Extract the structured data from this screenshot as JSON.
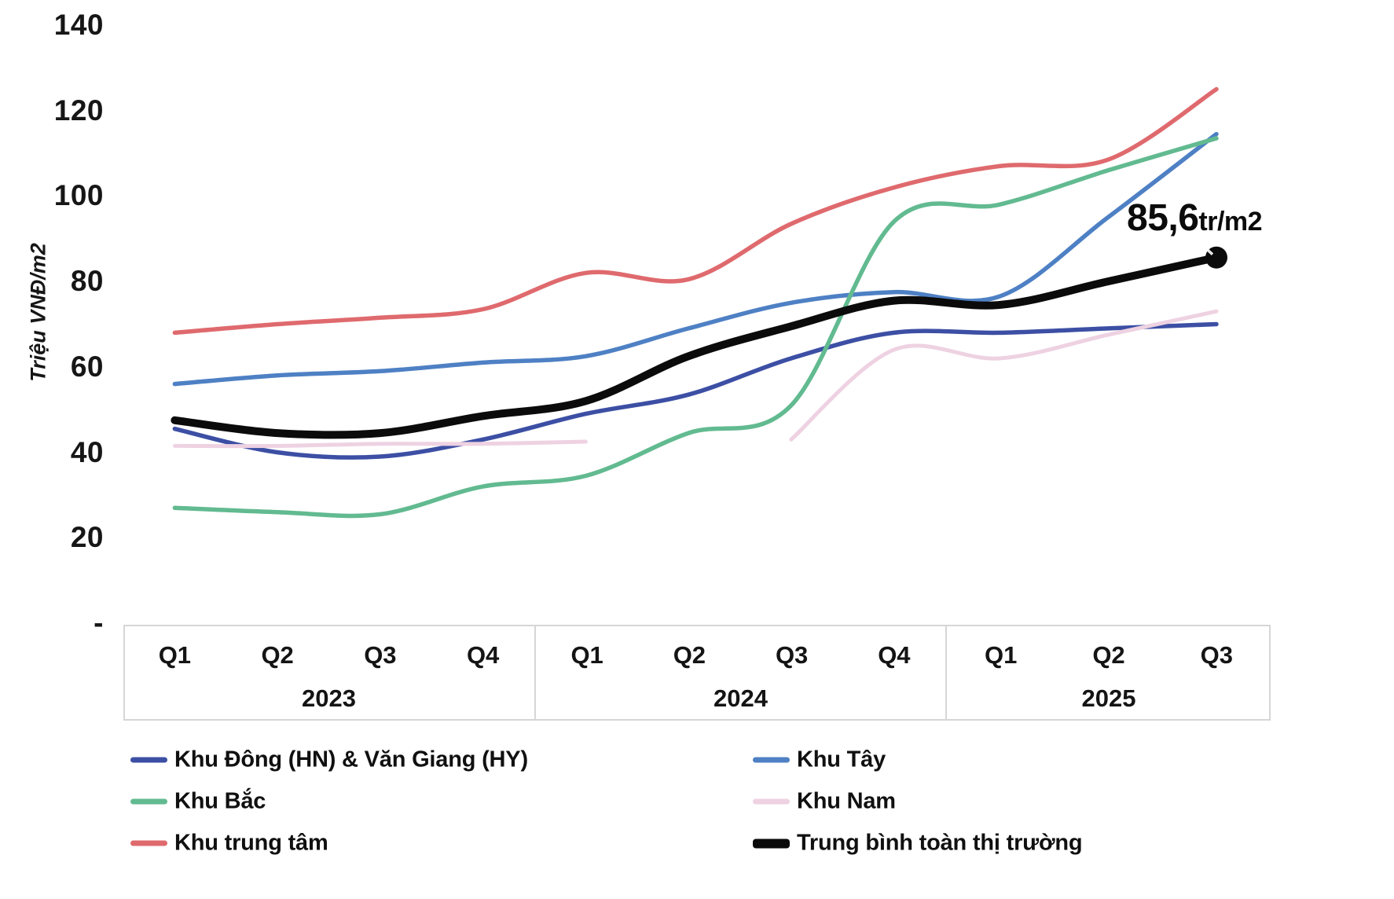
{
  "chart_data": {
    "type": "line",
    "title": "",
    "ylabel": "Triệu VNĐ/m2",
    "y_ticks": [
      "140",
      "120",
      "100",
      "80",
      "60",
      "40",
      "20",
      "-"
    ],
    "ylim": [
      0,
      140
    ],
    "grid": false,
    "legend_position": "bottom",
    "x_axis": {
      "years": [
        {
          "label": "2023",
          "quarters": [
            "Q1",
            "Q2",
            "Q3",
            "Q4"
          ]
        },
        {
          "label": "2024",
          "quarters": [
            "Q1",
            "Q2",
            "Q3",
            "Q4"
          ]
        },
        {
          "label": "2025",
          "quarters": [
            "Q1",
            "Q2",
            "Q3"
          ]
        }
      ]
    },
    "series": [
      {
        "name": "Khu Đông (HN) & Văn Giang (HY)",
        "color": "#3c4fa4",
        "stroke_width": 5.5,
        "values": [
          45.5,
          40,
          39,
          43,
          49,
          53.5,
          62,
          68,
          68,
          69,
          70
        ]
      },
      {
        "name": "Khu Tây",
        "color": "#4e80c4",
        "stroke_width": 5.5,
        "values": [
          56,
          58,
          59,
          61,
          62.5,
          69,
          75,
          77.5,
          76.5,
          95,
          114.5
        ]
      },
      {
        "name": "Khu Bắc",
        "color": "#62ba90",
        "stroke_width": 5.5,
        "values": [
          27,
          26,
          25.5,
          32,
          34.5,
          44.5,
          51,
          94,
          98,
          106,
          113.5
        ]
      },
      {
        "name": "Khu Nam",
        "color": "#eed2e2",
        "stroke_width": 5,
        "values": [
          41.5,
          41.5,
          42,
          42,
          42.5,
          null,
          43,
          64,
          62,
          67.5,
          73
        ]
      },
      {
        "name": "Khu trung tâm",
        "color": "#df6a6e",
        "stroke_width": 5.5,
        "values": [
          68,
          70,
          71.5,
          73.5,
          82,
          80.5,
          93.5,
          102,
          107,
          108.5,
          125
        ]
      },
      {
        "name": "Trung bình toàn thị trường",
        "color": "#0b0b0b",
        "stroke_width": 10,
        "marker_end": true,
        "values": [
          47.5,
          44.5,
          44.5,
          48.5,
          52,
          62.5,
          69.5,
          75.5,
          74.5,
          80,
          85.6
        ]
      }
    ],
    "annotation": {
      "value": "85,6",
      "unit": "tr/m2",
      "series": "Trung bình toàn thị trường"
    }
  },
  "legend": {
    "columns": [
      [
        0,
        2,
        4
      ],
      [
        1,
        3,
        5
      ]
    ]
  }
}
